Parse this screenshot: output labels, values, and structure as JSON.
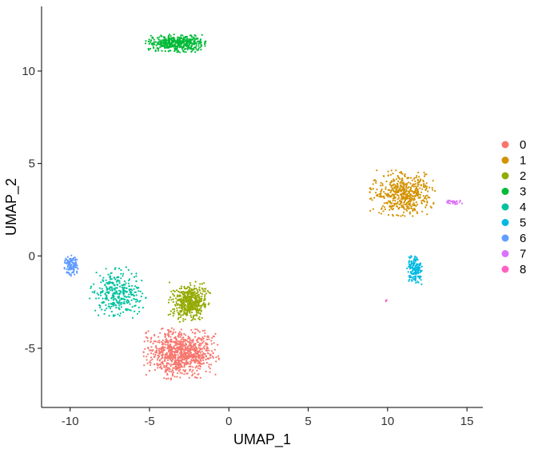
{
  "chart_data": {
    "type": "scatter",
    "xlabel": "UMAP_1",
    "ylabel": "UMAP_2",
    "xlim": [
      -11.8,
      16.0
    ],
    "ylim": [
      -8.2,
      13.5
    ],
    "x_ticks": [
      -10,
      -5,
      0,
      5,
      10,
      15
    ],
    "x_tick_labels": [
      "-10",
      "-5",
      "0",
      "5",
      "10",
      "15"
    ],
    "y_ticks": [
      -5,
      0,
      5,
      10
    ],
    "y_tick_labels": [
      "-5",
      "0",
      "5",
      "10"
    ],
    "grid": false,
    "legend_position": "right",
    "series": [
      {
        "name": "0",
        "color": "#F8766D",
        "center": [
          -3.0,
          -5.3
        ],
        "spread": [
          1.7,
          1.0
        ],
        "count": 900
      },
      {
        "name": "1",
        "color": "#D39200",
        "center": [
          10.9,
          3.4
        ],
        "spread": [
          1.5,
          0.9
        ],
        "count": 520
      },
      {
        "name": "2",
        "color": "#93AA00",
        "center": [
          -2.5,
          -2.5
        ],
        "spread": [
          0.95,
          0.8
        ],
        "count": 480
      },
      {
        "name": "3",
        "color": "#00BA38",
        "center": [
          -3.3,
          11.5
        ],
        "spread": [
          1.4,
          0.35
        ],
        "count": 430
      },
      {
        "name": "4",
        "color": "#00C19F",
        "center": [
          -7.0,
          -2.0
        ],
        "spread": [
          1.3,
          1.0
        ],
        "count": 320
      },
      {
        "name": "5",
        "color": "#00B9E3",
        "center": [
          11.7,
          -0.7
        ],
        "spread": [
          0.35,
          0.6
        ],
        "count": 160
      },
      {
        "name": "6",
        "color": "#619CFF",
        "center": [
          -9.9,
          -0.5
        ],
        "spread": [
          0.35,
          0.45
        ],
        "count": 110
      },
      {
        "name": "7",
        "color": "#DB72FB",
        "center": [
          14.2,
          2.9
        ],
        "spread": [
          0.45,
          0.08
        ],
        "count": 30
      },
      {
        "name": "8",
        "color": "#FF61C3",
        "center": [
          9.9,
          -2.4
        ],
        "spread": [
          0.05,
          0.05
        ],
        "count": 4
      }
    ]
  }
}
